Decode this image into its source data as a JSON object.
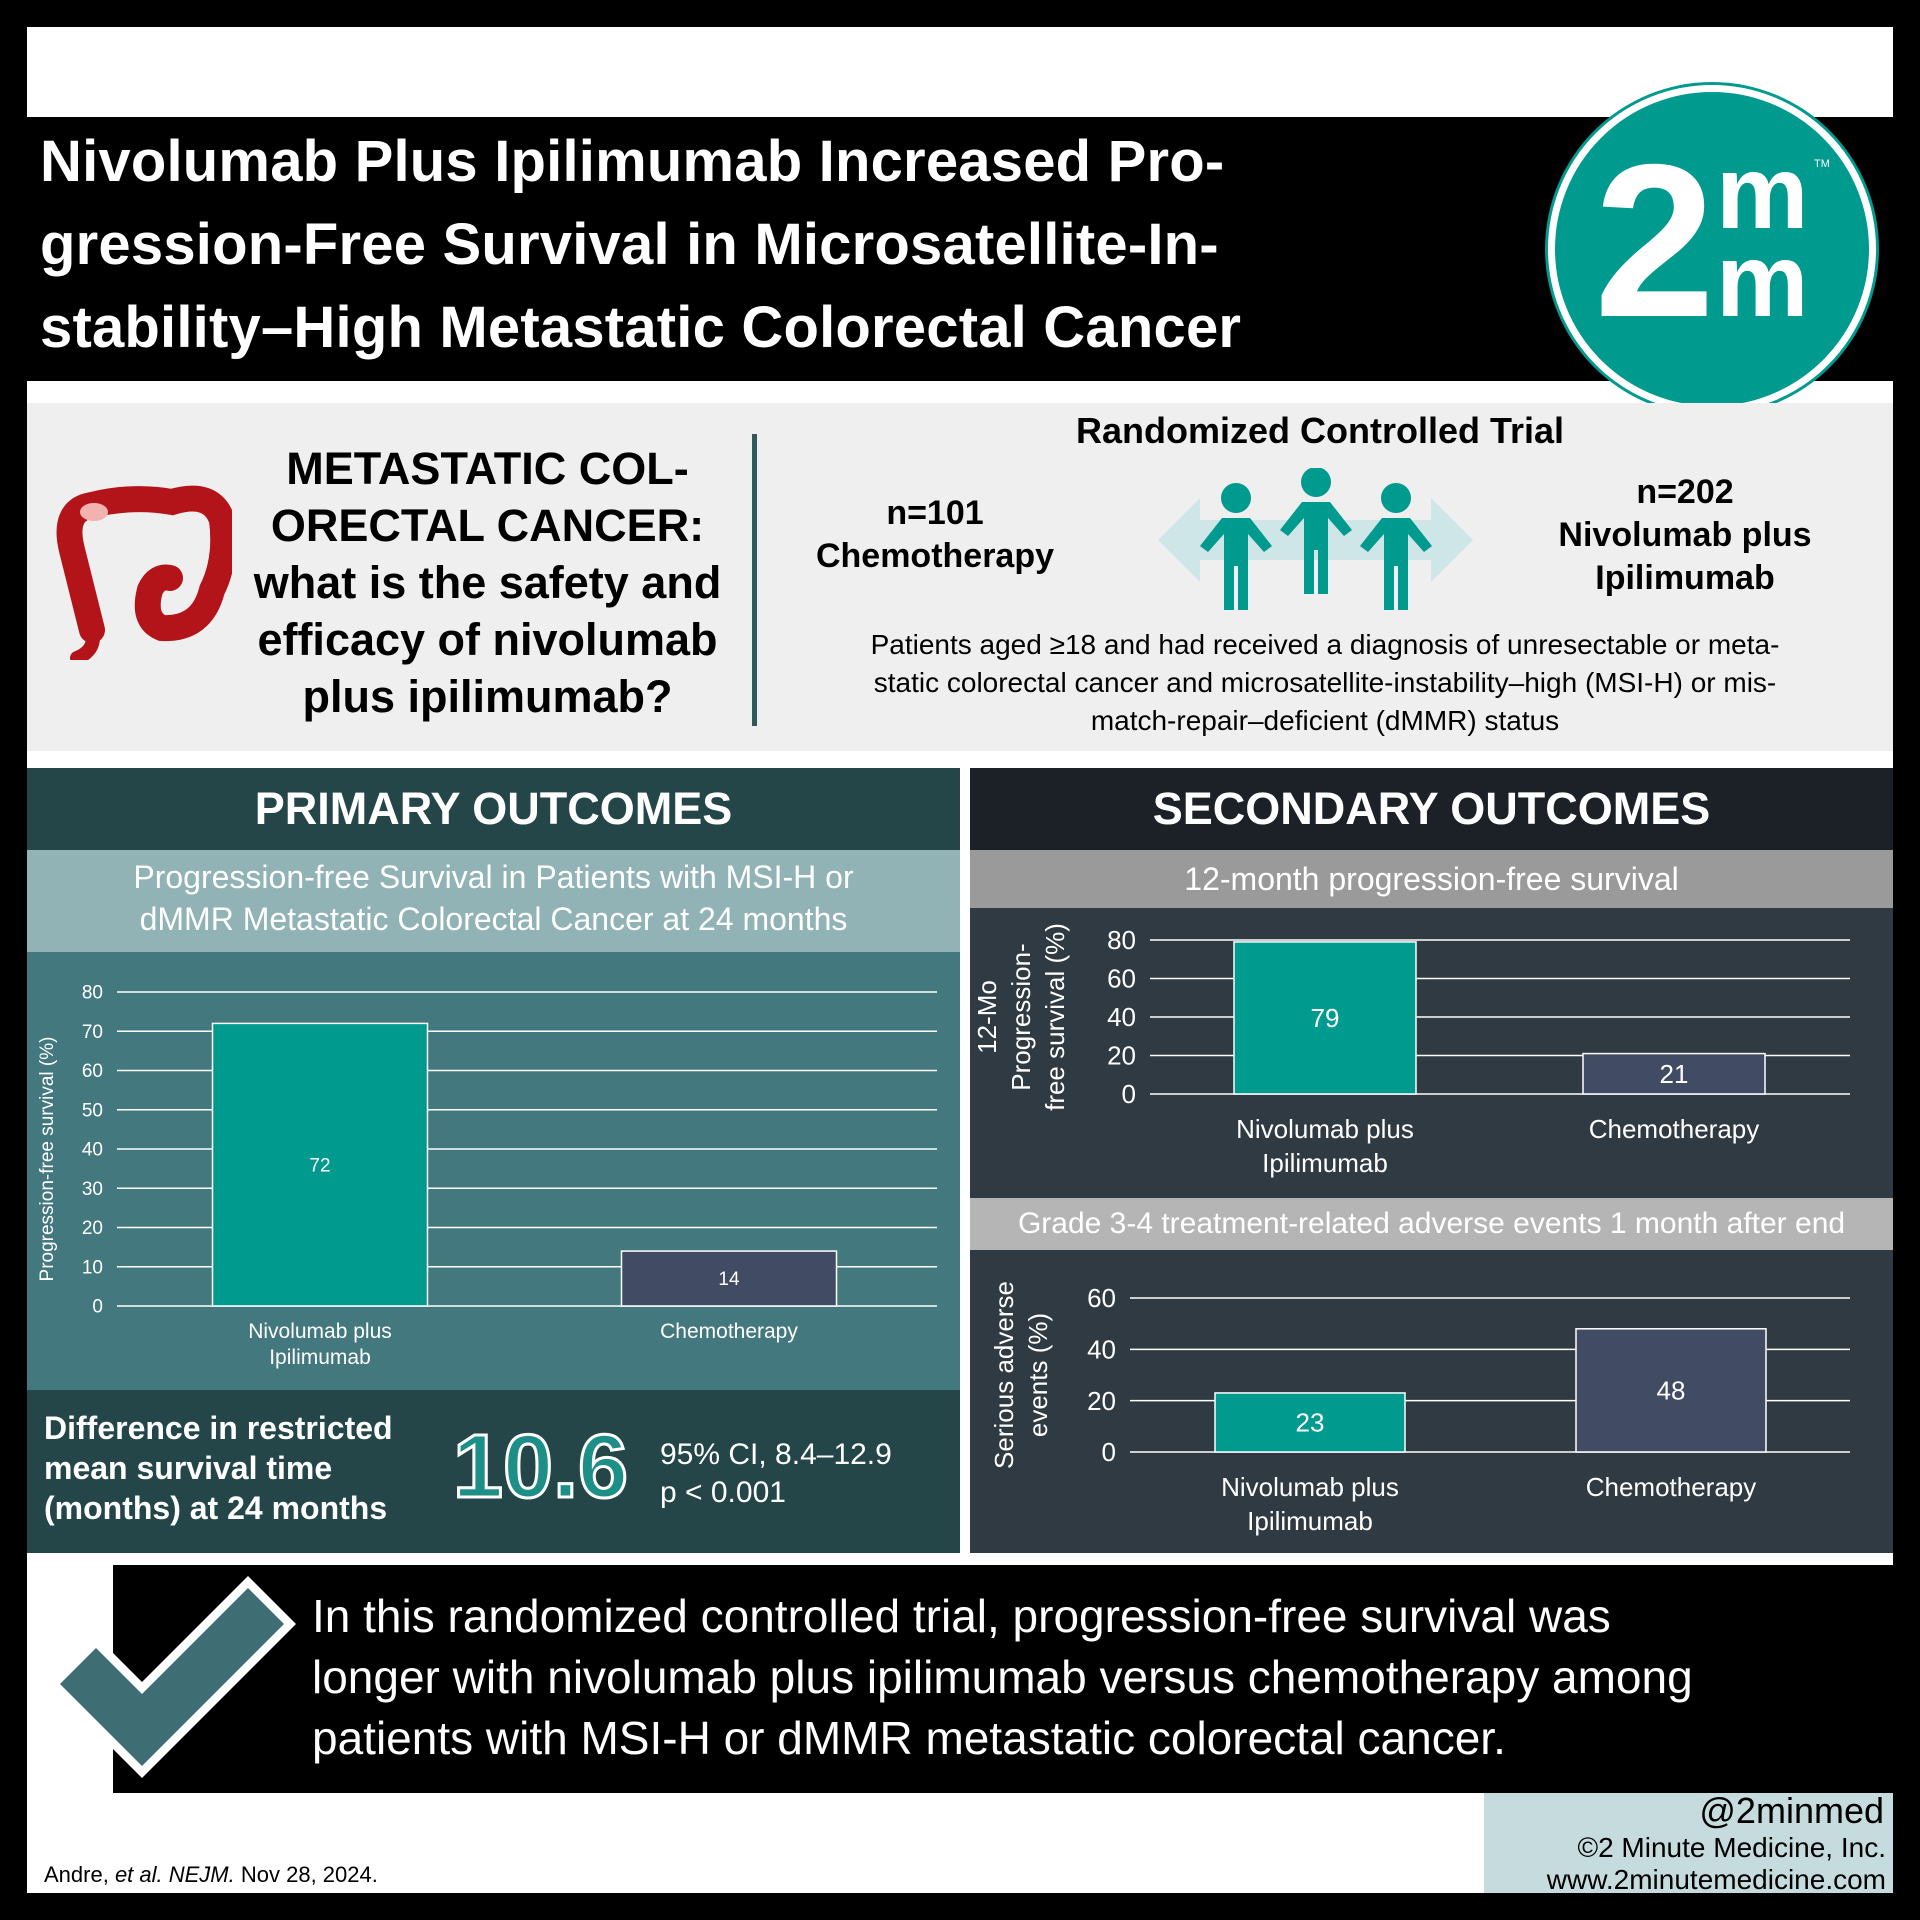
{
  "title": {
    "line1": "Nivolumab Plus Ipilimumab Increased Pro-",
    "line2": "gression-Free Survival in Microsatellite-In-",
    "line3": "stability–High Metastatic Colorectal Cancer"
  },
  "logo": {
    "digit": "2",
    "m_top": "m",
    "m_bottom": "m",
    "tm": "TM"
  },
  "question": {
    "line1": "METASTATIC COL-",
    "line2": "ORECTAL CANCER:",
    "line3": "what is the safety and",
    "line4": "efficacy of nivolumab",
    "line5": "plus ipilimumab?"
  },
  "trial": {
    "title": "Randomized Controlled Trial",
    "arm_left_n": "n=101",
    "arm_left_name": "Chemotherapy",
    "arm_right_n": "n=202",
    "arm_right_name1": "Nivolumab plus",
    "arm_right_name2": "Ipilimumab",
    "desc1": "Patients aged ≥18 and had received a diagnosis of unresectable or meta-",
    "desc2": "static colorectal cancer and microsatellite-instability–high (MSI-H) or mis-",
    "desc3": "match-repair–deficient (dMMR) status"
  },
  "primary": {
    "heading": "PRIMARY OUTCOMES",
    "subtitle1": "Progression-free Survival in Patients with MSI-H or",
    "subtitle2": "dMMR Metastatic Colorectal Cancer at 24 months",
    "diff_label1": "Difference in restricted",
    "diff_label2": "mean survival time",
    "diff_label3": "(months) at 24 months",
    "diff_value": "10.6",
    "ci": "95% CI, 8.4–12.9",
    "p": "p < 0.001"
  },
  "secondary": {
    "heading": "SECONDARY OUTCOMES",
    "subtitle1": "12-month progression-free survival",
    "subtitle2": "Grade 3-4 treatment-related adverse events 1 month after end"
  },
  "colors": {
    "nivo": "#009a8e",
    "chemo": "#414b64",
    "accent": "#009a8e"
  },
  "chart_data": [
    {
      "type": "bar",
      "title": "Progression-free Survival in Patients with MSI-H or dMMR Metastatic Colorectal Cancer at 24 months",
      "categories": [
        [
          "Nivolumab plus",
          "Ipilimumab"
        ],
        [
          "Chemotherapy"
        ]
      ],
      "values": [
        72,
        14
      ],
      "ylabel": "Progression-free survival (%)",
      "ylim": [
        0,
        80
      ],
      "yticks": [
        0,
        10,
        20,
        30,
        40,
        50,
        60,
        70,
        80
      ],
      "grid": true
    },
    {
      "type": "bar",
      "title": "12-month progression-free survival",
      "categories": [
        [
          "Nivolumab plus",
          "Ipilimumab"
        ],
        [
          "Chemotherapy"
        ]
      ],
      "values": [
        79,
        21
      ],
      "ylabel": [
        "12-Mo",
        "Progression-",
        "free survival (%)"
      ],
      "ylim": [
        0,
        80
      ],
      "yticks": [
        0,
        20,
        40,
        60,
        80
      ],
      "grid": true
    },
    {
      "type": "bar",
      "title": "Grade 3-4 treatment-related adverse events 1 month after end",
      "categories": [
        [
          "Nivolumab plus",
          "Ipilimumab"
        ],
        [
          "Chemotherapy"
        ]
      ],
      "values": [
        23,
        48
      ],
      "ylabel": [
        "Serious adverse",
        "events (%)"
      ],
      "ylim": [
        0,
        60
      ],
      "yticks": [
        0,
        20,
        40,
        60
      ],
      "grid": true
    }
  ],
  "conclusion": {
    "line1": "In this randomized controlled trial, progression-free survival was",
    "line2": "longer with nivolumab plus ipilimumab versus chemotherapy among",
    "line3": "patients with MSI-H or dMMR metastatic colorectal cancer."
  },
  "footer": {
    "handle": "@2minmed",
    "copyright": "©2 Minute Medicine, Inc.",
    "url": "www.2minutemedicine.com",
    "cite_author": "Andre, ",
    "cite_etal": "et al. NEJM.",
    "cite_date": " Nov 28, 2024."
  }
}
